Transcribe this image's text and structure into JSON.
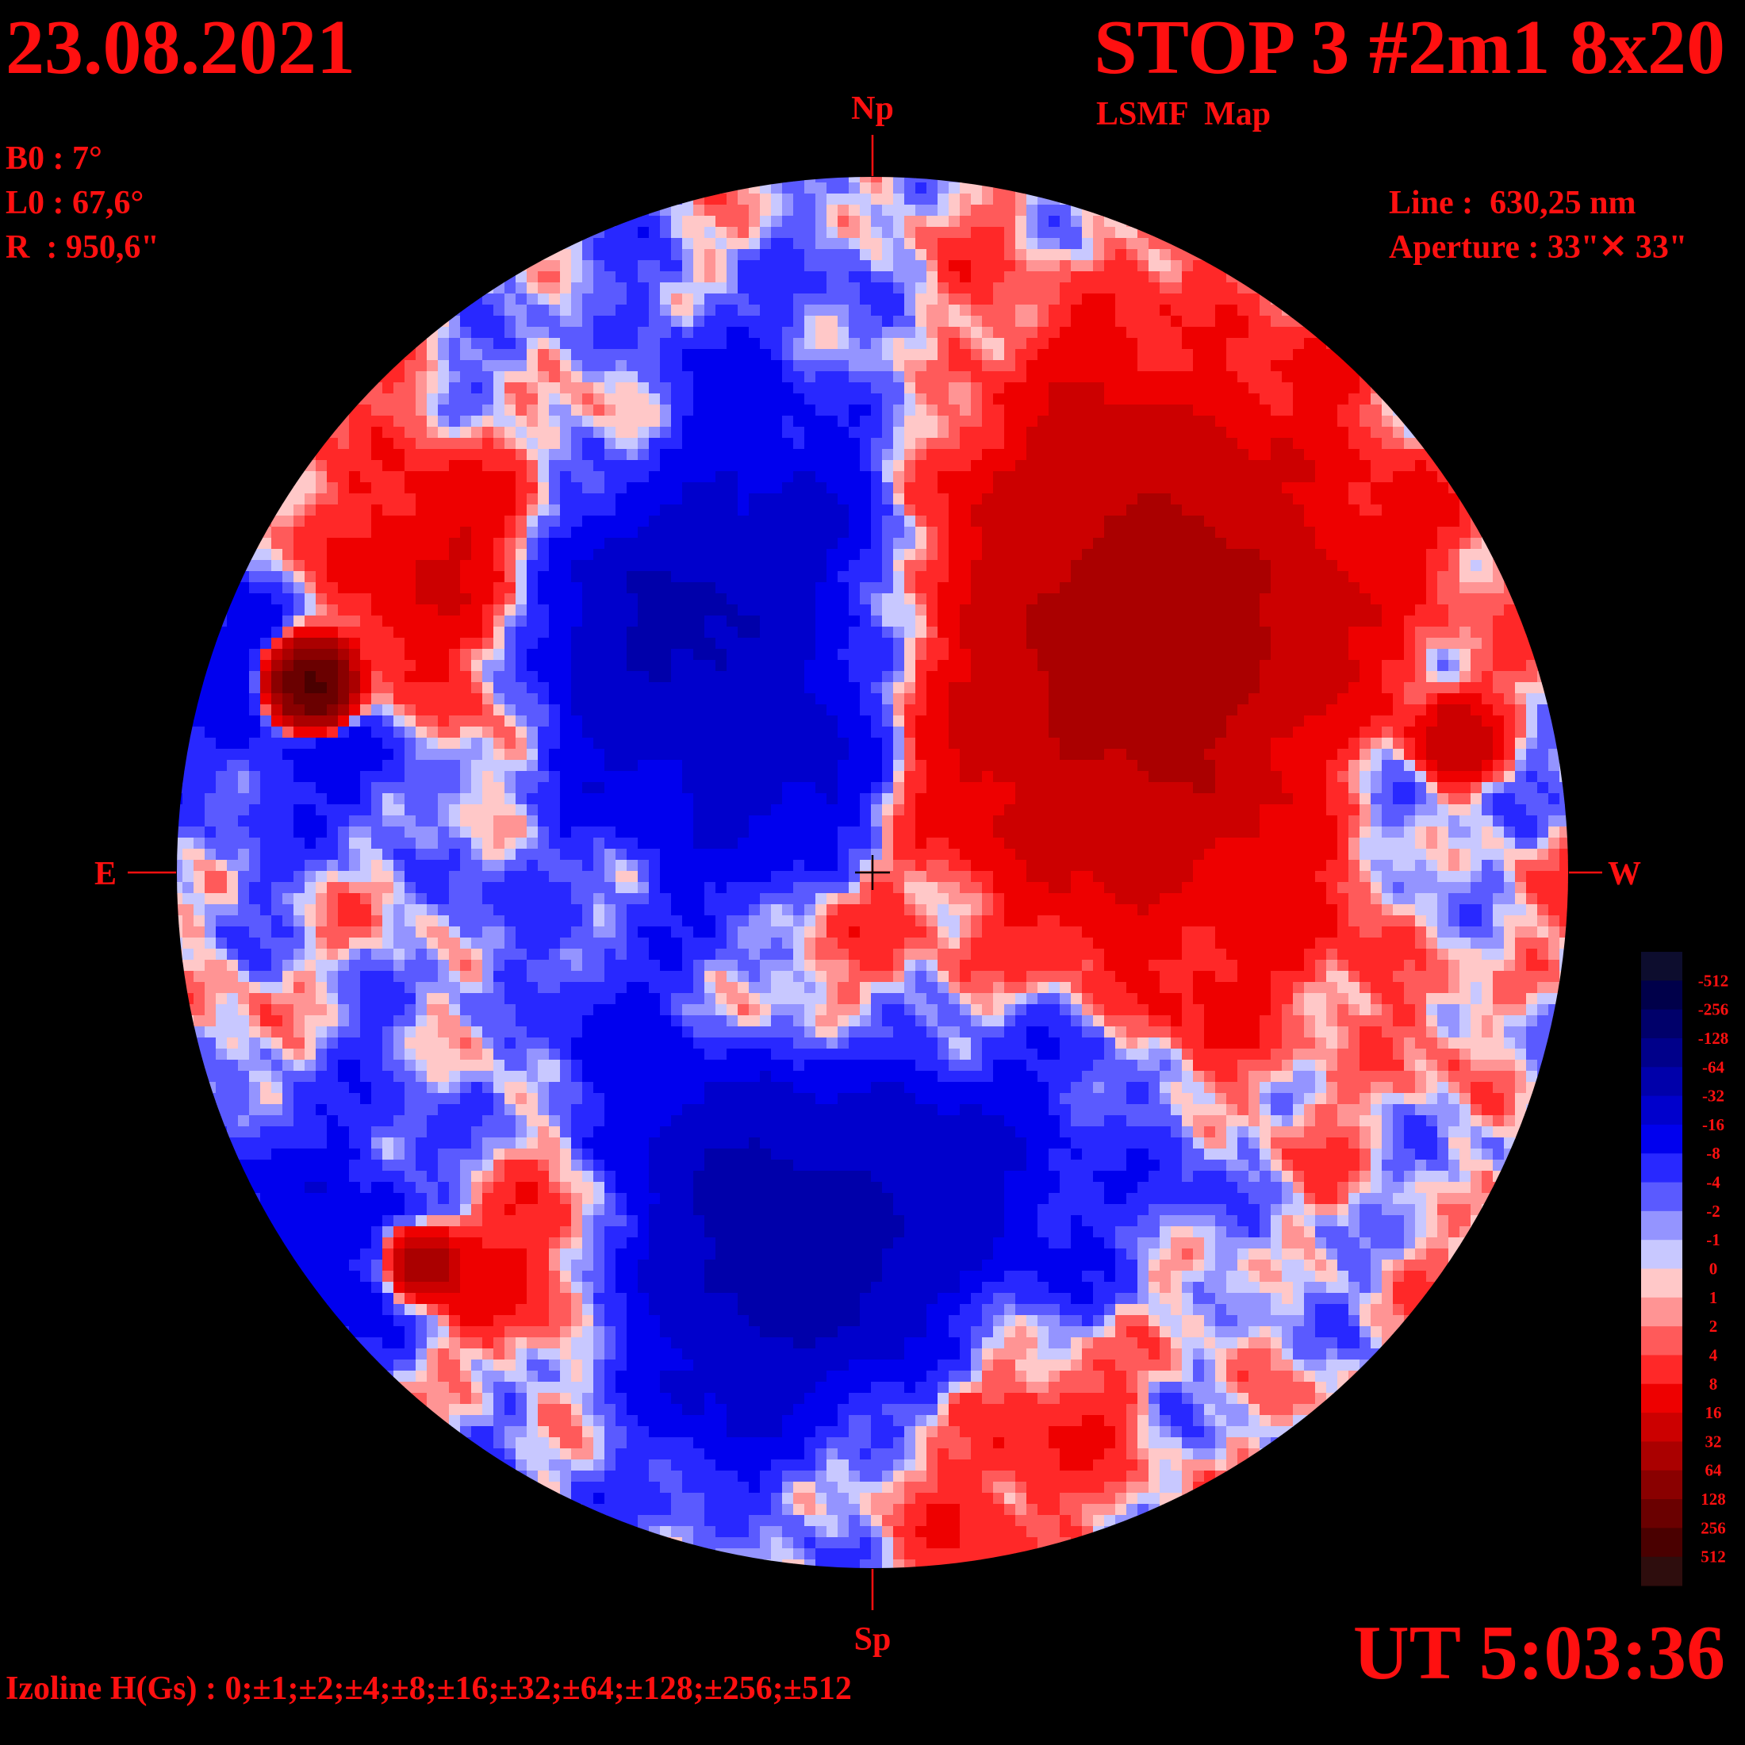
{
  "header": {
    "date": "23.08.2021",
    "title": "STOP 3 #2m1 8x20",
    "subtitle": "LSMF  Map",
    "time": "UT 5:03:36"
  },
  "parameters": [
    "B0 : 7°",
    "L0 : 67,6°",
    "R  : 950,6\""
  ],
  "instrument": [
    "Line :  630,25 nm",
    "Aperture : 33\"✕ 33\""
  ],
  "directions": {
    "north": "Np",
    "south": "Sp",
    "east": "E",
    "west": "W"
  },
  "footer": "Izoline H(Gs) : 0;±1;±2;±4;±8;±16;±32;±64;±128;±256;±512",
  "legend": {
    "levels": [
      -512,
      -256,
      -128,
      -64,
      -32,
      -16,
      -8,
      -4,
      -2,
      -1,
      0,
      1,
      2,
      4,
      8,
      16,
      32,
      64,
      128,
      256,
      512
    ],
    "colors": [
      "#0d0d2e",
      "#00004a",
      "#00006a",
      "#00008a",
      "#0000aa",
      "#0000cc",
      "#0000ee",
      "#2828ff",
      "#5a5aff",
      "#9494ff",
      "#c8c8ff",
      "#ffc8c8",
      "#ff9494",
      "#ff5a5a",
      "#ff2828",
      "#ee0000",
      "#cc0000",
      "#aa0000",
      "#8a0000",
      "#6a0000",
      "#4a0000",
      "#2e0d0d"
    ]
  }
}
